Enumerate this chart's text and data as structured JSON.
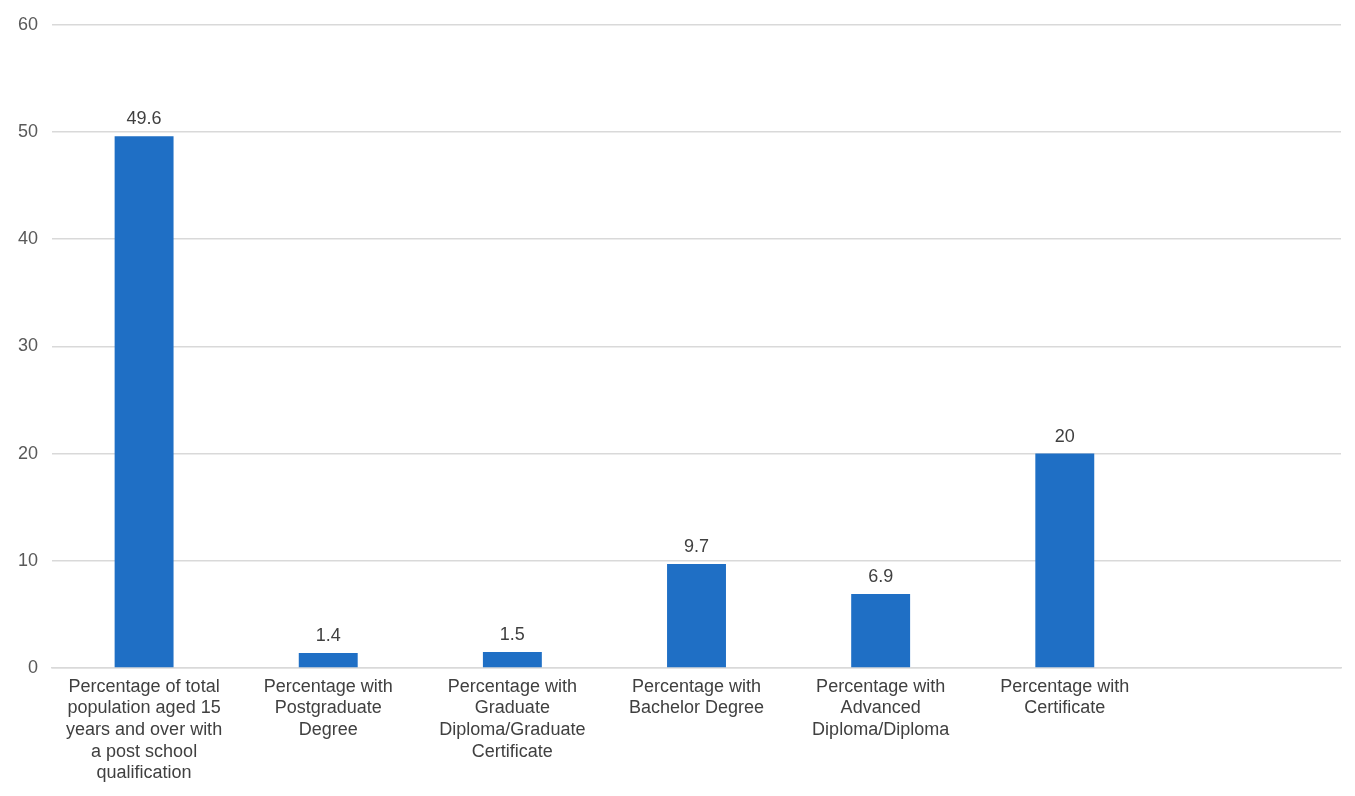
{
  "chart_data": {
    "type": "bar",
    "categories": [
      "Percentage of total population aged 15 years and over with a post school qualification",
      "Percentage with Postgraduate Degree",
      "Percentage with Graduate Diploma/Graduate Certificate",
      "Percentage with Bachelor Degree",
      "Percentage with Advanced Diploma/Diploma",
      "Percentage with Certificate",
      null
    ],
    "values": [
      49.6,
      1.4,
      1.5,
      9.7,
      6.9,
      20,
      null
    ],
    "color": "#1f6fc5",
    "ylim": [
      0,
      60
    ],
    "yticks": [
      0,
      10,
      20,
      30,
      40,
      50,
      60
    ],
    "grid": "y",
    "data_labels": true,
    "legend": false
  }
}
